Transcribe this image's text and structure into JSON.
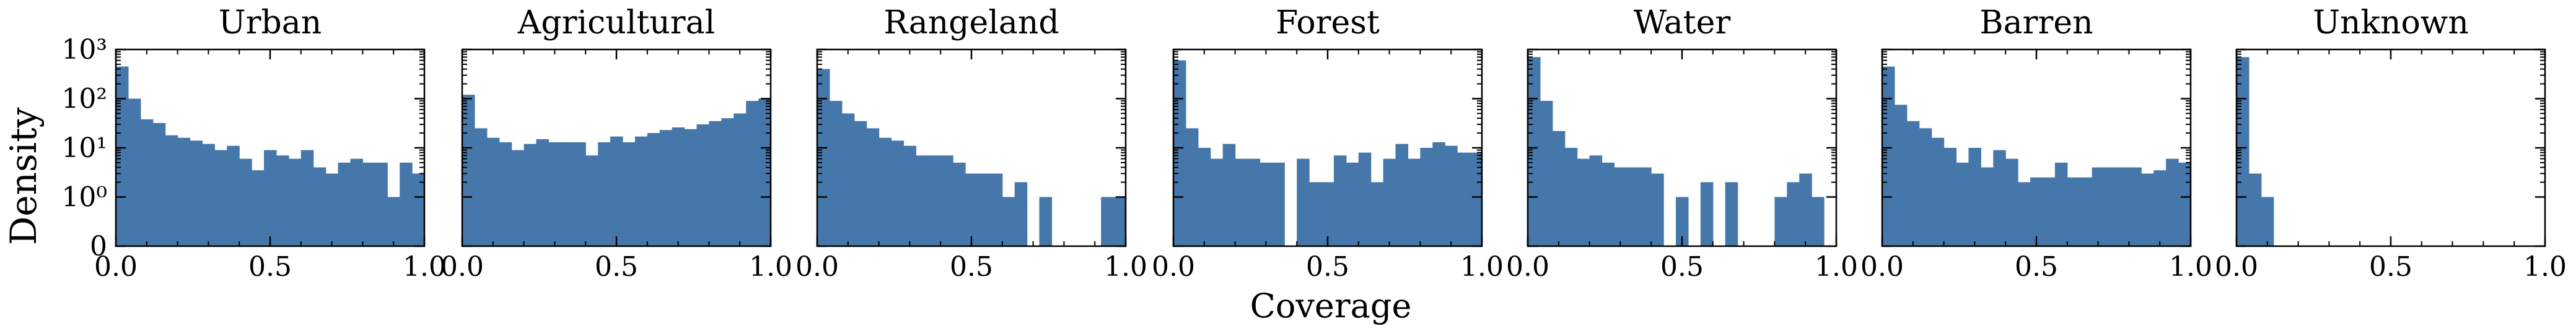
{
  "figure": {
    "ylabel": "Density",
    "xlabel": "Coverage",
    "bar_color": "#4677aa",
    "yscale": "symlog",
    "y_tick_labels": [
      "0",
      "10⁰",
      "10¹",
      "10²",
      "10³"
    ],
    "x_tick_labels": [
      "0.0",
      "0.5",
      "1.0"
    ]
  },
  "chart_data": [
    {
      "type": "bar",
      "title": "Urban",
      "xlim": [
        0,
        1
      ],
      "ylim": [
        0,
        1000
      ],
      "bin_starts": [
        0,
        0.04,
        0.08,
        0.12,
        0.16,
        0.2,
        0.24,
        0.28,
        0.32,
        0.36,
        0.4,
        0.44,
        0.48,
        0.52,
        0.56,
        0.6,
        0.64,
        0.68,
        0.72,
        0.76,
        0.8,
        0.84,
        0.88,
        0.92,
        0.96
      ],
      "bin_width": 0.04,
      "values": [
        450,
        100,
        38,
        32,
        18,
        16,
        14,
        12,
        9,
        11,
        6,
        3.5,
        9,
        7,
        6,
        9,
        4,
        3,
        5,
        6,
        5,
        5,
        1,
        5,
        3
      ]
    },
    {
      "type": "bar",
      "title": "Agricultural",
      "xlim": [
        0,
        1
      ],
      "ylim": [
        0,
        1000
      ],
      "bin_starts": [
        0,
        0.04,
        0.08,
        0.12,
        0.16,
        0.2,
        0.24,
        0.28,
        0.32,
        0.36,
        0.4,
        0.44,
        0.48,
        0.52,
        0.56,
        0.6,
        0.64,
        0.68,
        0.72,
        0.76,
        0.8,
        0.84,
        0.88,
        0.92,
        0.96
      ],
      "bin_width": 0.04,
      "values": [
        120,
        25,
        16,
        13,
        9,
        12,
        15,
        13,
        13,
        13,
        7,
        13,
        17,
        13,
        17,
        20,
        23,
        26,
        24,
        30,
        35,
        40,
        50,
        90,
        100
      ]
    },
    {
      "type": "bar",
      "title": "Rangeland",
      "xlim": [
        0,
        1
      ],
      "ylim": [
        0,
        1000
      ],
      "bin_starts": [
        0,
        0.04,
        0.08,
        0.12,
        0.16,
        0.2,
        0.24,
        0.28,
        0.32,
        0.36,
        0.4,
        0.44,
        0.48,
        0.52,
        0.56,
        0.6,
        0.64,
        0.68,
        0.72,
        0.76,
        0.8,
        0.84,
        0.88,
        0.92,
        0.96
      ],
      "bin_width": 0.04,
      "values": [
        400,
        90,
        50,
        35,
        25,
        16,
        14,
        11,
        7,
        7,
        7,
        5,
        3,
        3,
        3,
        1,
        2,
        0,
        1,
        0,
        0,
        0,
        0,
        1,
        1
      ]
    },
    {
      "type": "bar",
      "title": "Forest",
      "xlim": [
        0,
        1
      ],
      "ylim": [
        0,
        1000
      ],
      "bin_starts": [
        0,
        0.04,
        0.08,
        0.12,
        0.16,
        0.2,
        0.24,
        0.28,
        0.32,
        0.36,
        0.4,
        0.44,
        0.48,
        0.52,
        0.56,
        0.6,
        0.64,
        0.68,
        0.72,
        0.76,
        0.8,
        0.84,
        0.88,
        0.92,
        0.96
      ],
      "bin_width": 0.04,
      "values": [
        600,
        25,
        10,
        6,
        12,
        6,
        6,
        5,
        5,
        0,
        6,
        2,
        2,
        7,
        5,
        8,
        2,
        6,
        12,
        6,
        10,
        13,
        11,
        8,
        8
      ]
    },
    {
      "type": "bar",
      "title": "Water",
      "xlim": [
        0,
        1
      ],
      "ylim": [
        0,
        1000
      ],
      "bin_starts": [
        0,
        0.04,
        0.08,
        0.12,
        0.16,
        0.2,
        0.24,
        0.28,
        0.32,
        0.36,
        0.4,
        0.44,
        0.48,
        0.52,
        0.56,
        0.6,
        0.64,
        0.68,
        0.72,
        0.76,
        0.8,
        0.84,
        0.88,
        0.92,
        0.96
      ],
      "bin_width": 0.04,
      "values": [
        700,
        90,
        22,
        10,
        6,
        7,
        5,
        4,
        4,
        4,
        3,
        0,
        1,
        0,
        2,
        0,
        2,
        0,
        0,
        0,
        1,
        2,
        3,
        1,
        0
      ]
    },
    {
      "type": "bar",
      "title": "Barren",
      "xlim": [
        0,
        1
      ],
      "ylim": [
        0,
        1000
      ],
      "bin_starts": [
        0,
        0.04,
        0.08,
        0.12,
        0.16,
        0.2,
        0.24,
        0.28,
        0.32,
        0.36,
        0.4,
        0.44,
        0.48,
        0.52,
        0.56,
        0.6,
        0.64,
        0.68,
        0.72,
        0.76,
        0.8,
        0.84,
        0.88,
        0.92,
        0.96
      ],
      "bin_width": 0.04,
      "values": [
        450,
        75,
        35,
        25,
        16,
        10,
        5,
        10,
        4,
        9,
        6,
        2,
        2.5,
        2.5,
        5,
        2.5,
        2.5,
        4,
        4,
        4,
        4,
        3,
        3.5,
        6,
        5
      ]
    },
    {
      "type": "bar",
      "title": "Unknown",
      "xlim": [
        0,
        1
      ],
      "ylim": [
        0,
        1000
      ],
      "bin_starts": [
        0,
        0.04,
        0.08,
        0.12,
        0.16,
        0.2,
        0.24,
        0.28,
        0.32,
        0.36,
        0.4,
        0.44,
        0.48,
        0.52,
        0.56,
        0.6,
        0.64,
        0.68,
        0.72,
        0.76,
        0.8,
        0.84,
        0.88,
        0.92,
        0.96
      ],
      "bin_width": 0.04,
      "values": [
        700,
        3,
        1,
        0,
        0,
        0,
        0,
        0,
        0,
        0,
        0,
        0,
        0,
        0,
        0,
        0,
        0,
        0,
        0,
        0,
        0,
        0,
        0,
        0,
        0
      ]
    }
  ]
}
